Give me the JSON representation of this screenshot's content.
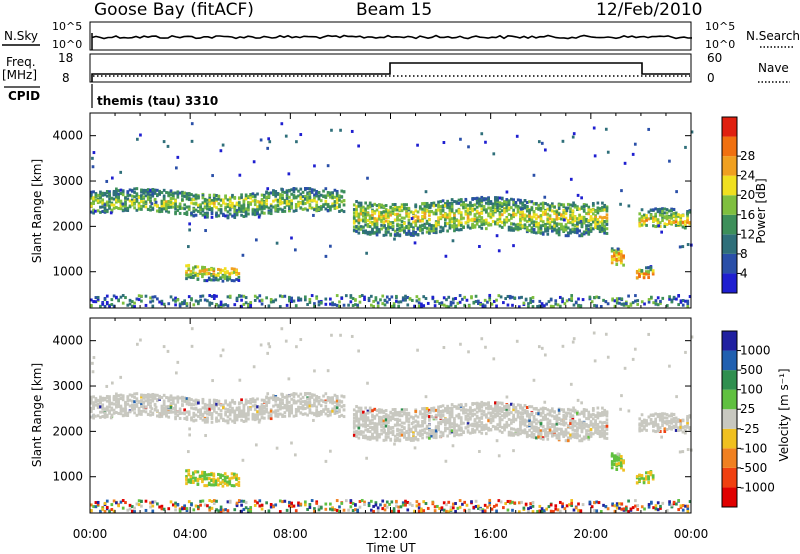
{
  "header": {
    "station": "Goose Bay (fitACF)",
    "beam": "Beam 15",
    "date": "12/Feb/2010"
  },
  "strips": {
    "nsky_label": "N.Sky",
    "nsky_ticks": [
      "10^5",
      "10^0"
    ],
    "nsearch_label": "N.Search",
    "nsearch_ticks": [
      "10^5",
      "10^0"
    ],
    "freq_label": "Freq.",
    "freq_unit": "[MHz]",
    "freq_ticks": [
      "18",
      "8"
    ],
    "nave_label": "Nave",
    "nave_ticks": [
      "60",
      "0"
    ],
    "cpid_label": "CPID",
    "cpid_value": "themis (tau) 3310"
  },
  "colors": {
    "power_scale": [
      "#1f1fd0",
      "#2a4fa8",
      "#2f6f7a",
      "#3d8f5a",
      "#7fbf3f",
      "#f0e020",
      "#f0a020",
      "#f07010",
      "#e02010"
    ],
    "velocity_scale": [
      "#2020a0",
      "#2060b0",
      "#2f8f4f",
      "#60c040",
      "#c8c8c0",
      "#f0c020",
      "#f08020",
      "#f04010",
      "#e00000"
    ],
    "ground_scatter": "#c8c8c0"
  },
  "chart_data": [
    {
      "type": "heatmap",
      "title": "Power",
      "ylabel": "Slant Range [km]",
      "ylim": [
        200,
        4500
      ],
      "yticks": [
        "1000",
        "2000",
        "3000",
        "4000"
      ],
      "xlim": [
        0,
        24
      ],
      "colorbar_label": "Power [dB]",
      "colorbar_ticks": [
        "4",
        "8",
        "12",
        "16",
        "20",
        "24",
        "28"
      ],
      "features": [
        {
          "name": "band",
          "t0": 0,
          "t1": 10.2,
          "r_center": 2550,
          "r_width": 500,
          "level": 14
        },
        {
          "name": "band",
          "t0": 10.5,
          "t1": 20.7,
          "r_center": 2250,
          "r_width": 700,
          "level": 16
        },
        {
          "name": "band",
          "t0": 21.9,
          "t1": 24,
          "r_center": 2150,
          "r_width": 400,
          "level": 18
        },
        {
          "name": "patch",
          "t0": 3.8,
          "t1": 6.0,
          "r_center": 1050,
          "r_width": 300,
          "level": 20
        },
        {
          "name": "patch",
          "t0": 20.8,
          "t1": 21.3,
          "r_center": 1350,
          "r_width": 400,
          "level": 22
        },
        {
          "name": "patch",
          "t0": 21.8,
          "t1": 22.5,
          "r_center": 950,
          "r_width": 250,
          "level": 24
        }
      ]
    },
    {
      "type": "heatmap",
      "title": "Velocity",
      "ylabel": "Slant Range [km]",
      "ylim": [
        200,
        4500
      ],
      "yticks": [
        "1000",
        "2000",
        "3000",
        "4000"
      ],
      "xlim": [
        0,
        24
      ],
      "xlabel": "Time UT",
      "xticks": [
        "00:00",
        "04:00",
        "08:00",
        "12:00",
        "16:00",
        "20:00",
        "00:00"
      ],
      "colorbar_label": "Velocity [m s⁻¹]",
      "colorbar_ticks": [
        "1000",
        "500",
        "100",
        "25",
        "-25",
        "-100",
        "-500",
        "-1000"
      ]
    }
  ]
}
